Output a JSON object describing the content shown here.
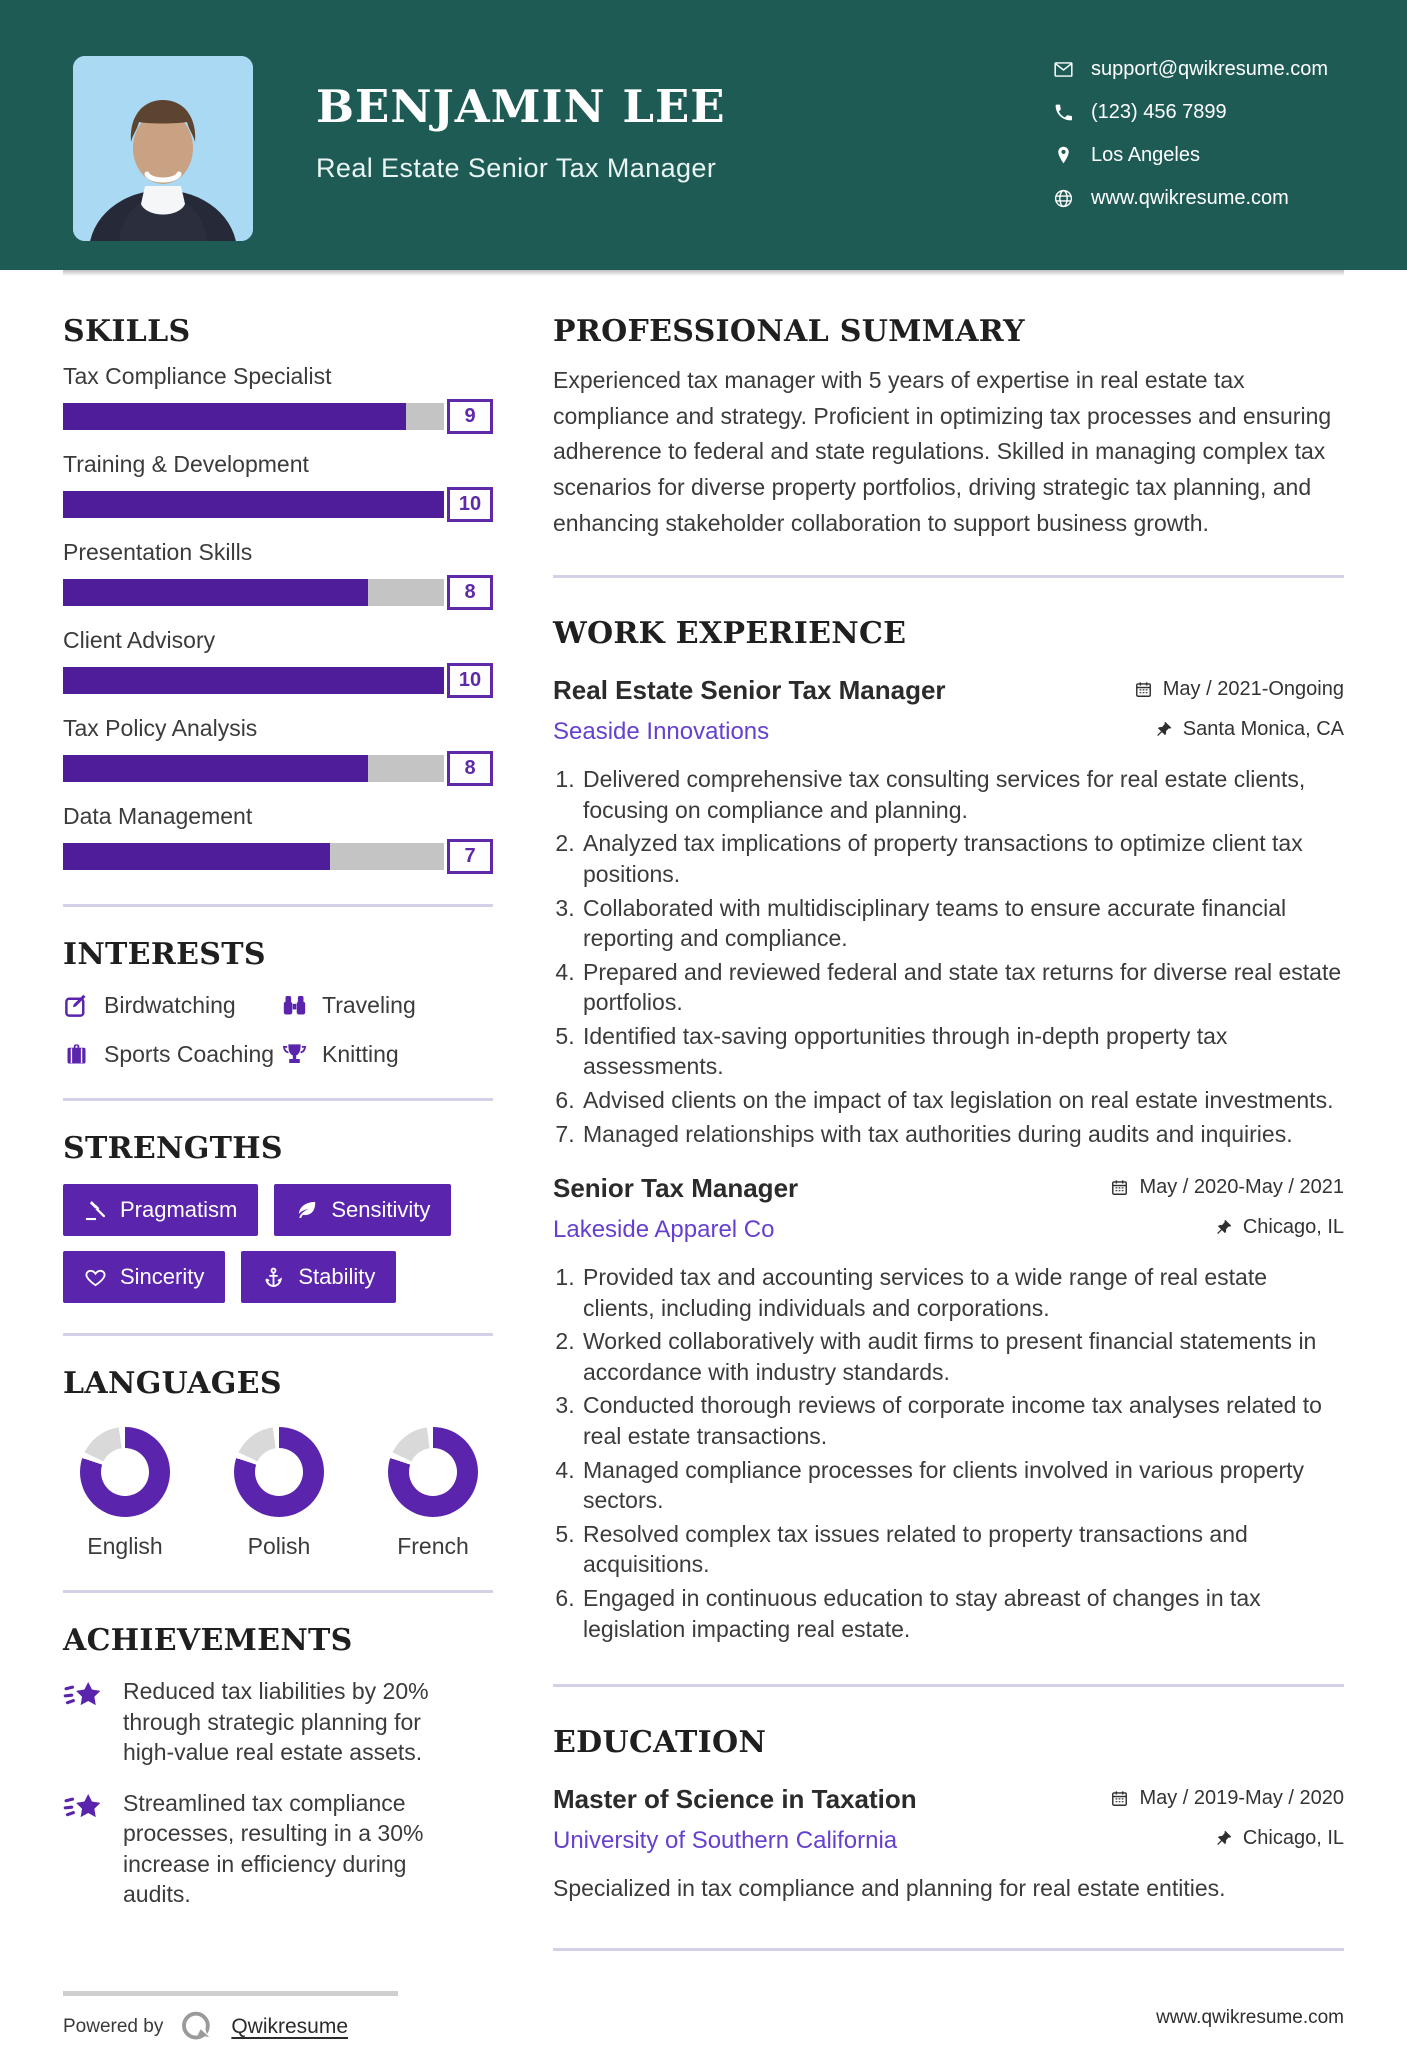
{
  "colors": {
    "teal": "#1E5B54",
    "bar_fill": "#4F1D99",
    "accent": "#5B24AD",
    "donut_rest": "#d9d9d9",
    "link_purple": "#6640CE"
  },
  "header": {
    "name": "BENJAMIN LEE",
    "title": "Real Estate Senior Tax Manager",
    "contacts": [
      {
        "icon": "#i-mail",
        "label": "support@qwikresume.com"
      },
      {
        "icon": "#i-phone",
        "label": "(123) 456 7899"
      },
      {
        "icon": "#i-loc",
        "label": "Los Angeles"
      },
      {
        "icon": "#i-globe",
        "label": "www.qwikresume.com"
      }
    ]
  },
  "sidebar": {
    "skills": {
      "heading": "SKILLS",
      "items": [
        {
          "label": "Tax Compliance Specialist",
          "value": 9,
          "max": 10
        },
        {
          "label": "Training & Development",
          "value": 10,
          "max": 10
        },
        {
          "label": "Presentation Skills",
          "value": 8,
          "max": 10
        },
        {
          "label": "Client Advisory",
          "value": 10,
          "max": 10
        },
        {
          "label": "Tax Policy Analysis",
          "value": 8,
          "max": 10
        },
        {
          "label": "Data Management",
          "value": 7,
          "max": 10
        }
      ]
    },
    "interests": {
      "heading": "INTERESTS",
      "items": [
        {
          "label": "Birdwatching",
          "icon": "#i-edit"
        },
        {
          "label": "Traveling",
          "icon": "#i-binoculars"
        },
        {
          "label": "Sports Coaching",
          "icon": "#i-briefcase"
        },
        {
          "label": "Knitting",
          "icon": "#i-trophy"
        }
      ]
    },
    "strengths": {
      "heading": "STRENGTHS",
      "items": [
        {
          "label": "Pragmatism",
          "icon": "#i-gavel"
        },
        {
          "label": "Sensitivity",
          "icon": "#i-leaf"
        },
        {
          "label": "Sincerity",
          "icon": "#i-heart"
        },
        {
          "label": "Stability",
          "icon": "#i-anchor"
        }
      ]
    },
    "languages": {
      "heading": "LANGUAGES",
      "items": [
        {
          "label": "English",
          "percent": 80
        },
        {
          "label": "Polish",
          "percent": 80
        },
        {
          "label": "French",
          "percent": 80
        }
      ]
    },
    "achievements": {
      "heading": "ACHIEVEMENTS",
      "items": [
        {
          "text": "Reduced tax liabilities by 20% through strategic planning for high-value real estate assets."
        },
        {
          "text": "Streamlined tax compliance processes, resulting in a 30% increase in efficiency during audits."
        }
      ]
    }
  },
  "main": {
    "summary": {
      "heading": "PROFESSIONAL SUMMARY",
      "text": "Experienced tax manager with 5 years of expertise in real estate tax compliance and strategy. Proficient in optimizing tax processes and ensuring adherence to federal and state regulations. Skilled in managing complex tax scenarios for diverse property portfolios, driving strategic tax planning, and enhancing stakeholder collaboration to support business growth."
    },
    "experience": {
      "heading": "WORK EXPERIENCE",
      "jobs": [
        {
          "title": "Real Estate Senior Tax Manager",
          "company": "Seaside Innovations",
          "date": "May / 2021-Ongoing",
          "location": "Santa Monica, CA",
          "bullets": [
            "Delivered comprehensive tax consulting services for real estate clients, focusing on compliance and planning.",
            "Analyzed tax implications of property transactions to optimize client tax positions.",
            "Collaborated with multidisciplinary teams to ensure accurate financial reporting and compliance.",
            "Prepared and reviewed federal and state tax returns for diverse real estate portfolios.",
            "Identified tax-saving opportunities through in-depth property tax assessments.",
            "Advised clients on the impact of tax legislation on real estate investments.",
            "Managed relationships with tax authorities during audits and inquiries."
          ]
        },
        {
          "title": "Senior Tax Manager",
          "company": "Lakeside Apparel Co",
          "date": "May / 2020-May / 2021",
          "location": "Chicago, IL",
          "bullets": [
            "Provided tax and accounting services to a wide range of real estate clients, including individuals and corporations.",
            "Worked collaboratively with audit firms to present financial statements in accordance with industry standards.",
            "Conducted thorough reviews of corporate income tax analyses related to real estate transactions.",
            "Managed compliance processes for clients involved in various property sectors.",
            "Resolved complex tax issues related to property transactions and acquisitions.",
            "Engaged in continuous education to stay abreast of changes in tax legislation impacting real estate."
          ]
        }
      ]
    },
    "education": {
      "heading": "EDUCATION",
      "degree": "Master of Science in Taxation",
      "school": "University of Southern California",
      "date": "May / 2019-May / 2020",
      "location": "Chicago, IL",
      "note": "Specialized in tax compliance and planning for real estate entities."
    }
  },
  "footer": {
    "powered_by": "Powered by",
    "brand": "Qwikresume",
    "website": "www.qwikresume.com"
  }
}
